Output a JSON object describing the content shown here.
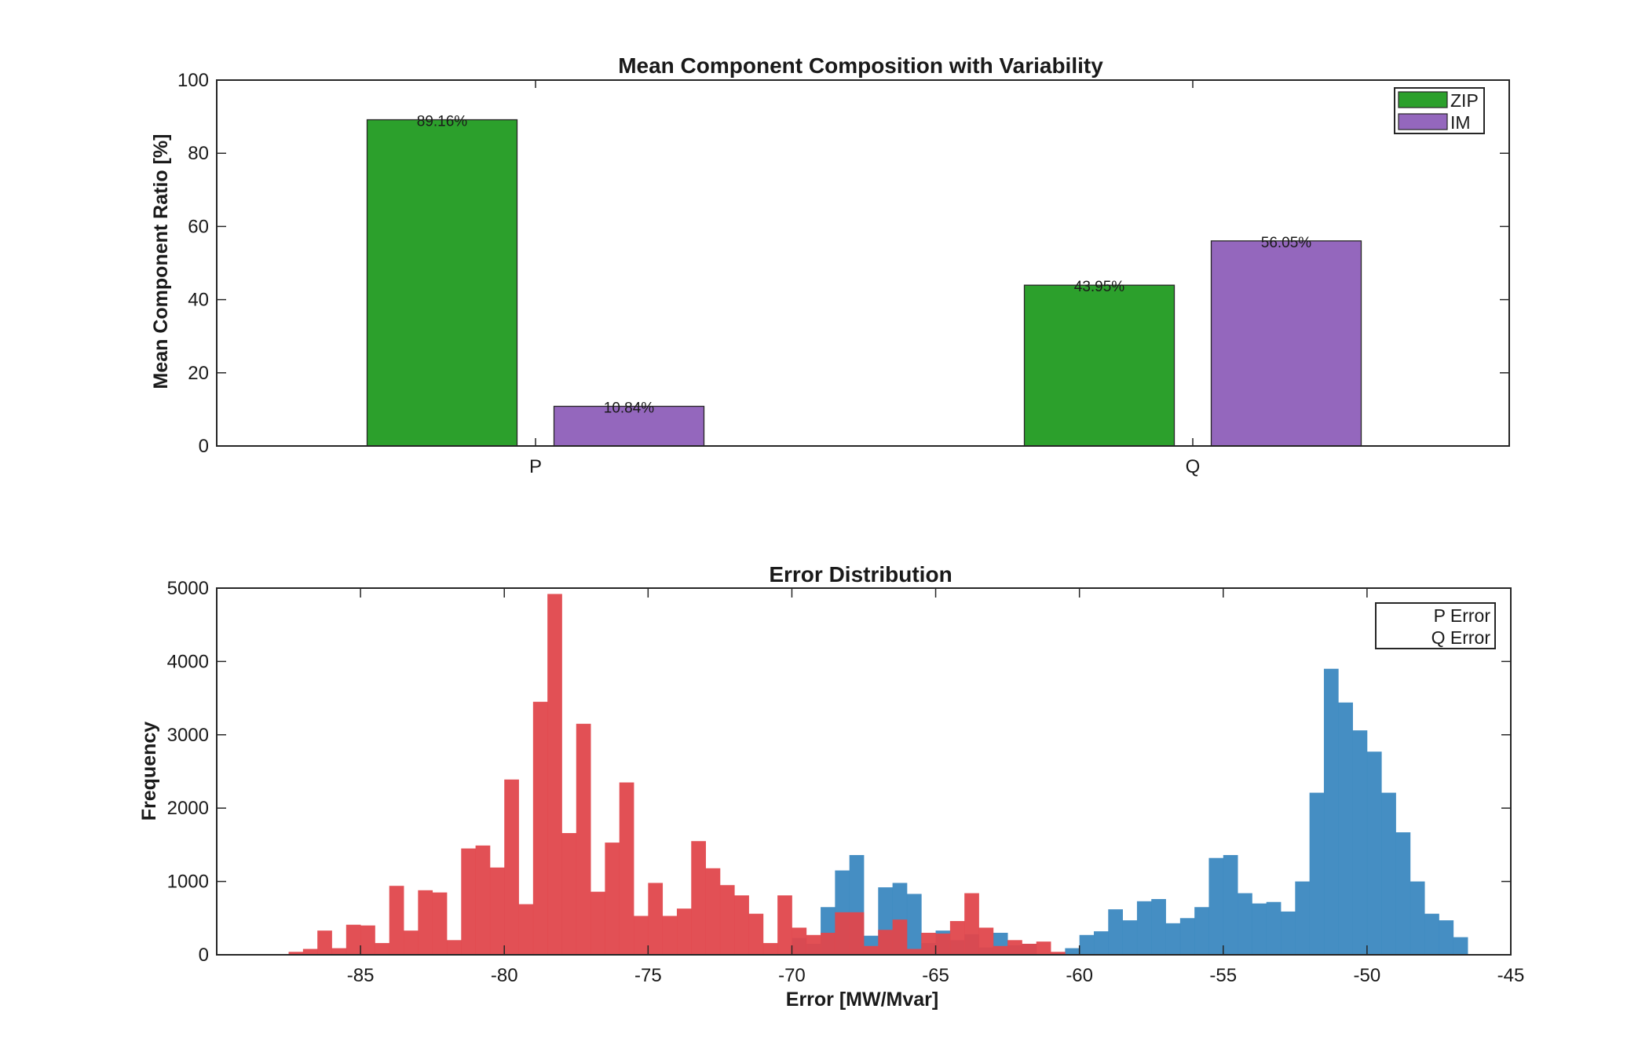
{
  "chart_data": [
    {
      "type": "bar",
      "title": "Mean Component Composition with Variability",
      "xlabel": "",
      "ylabel": "Mean Component Ratio [%]",
      "ylim": [
        0,
        100
      ],
      "yticks": [
        0,
        20,
        40,
        60,
        80,
        100
      ],
      "categories": [
        "P",
        "Q"
      ],
      "series": [
        {
          "name": "ZIP",
          "color": "#2ca02c",
          "values": [
            89.16,
            43.95
          ],
          "labels": [
            "89.16%",
            "43.95%"
          ]
        },
        {
          "name": "IM",
          "color": "#9467bd",
          "values": [
            10.84,
            56.05
          ],
          "labels": [
            "10.84%",
            "56.05%"
          ]
        }
      ],
      "legend": "top-right"
    },
    {
      "type": "histogram",
      "title": "Error Distribution",
      "xlabel": "Error [MW/Mvar]",
      "ylabel": "Frequency",
      "xlim": [
        -90,
        -45
      ],
      "ylim": [
        0,
        5000
      ],
      "xticks": [
        -85,
        -80,
        -75,
        -70,
        -65,
        -60,
        -55,
        -50,
        -45
      ],
      "yticks": [
        0,
        1000,
        2000,
        3000,
        4000,
        5000
      ],
      "bin_width": 0.5,
      "series": [
        {
          "name": "P Error",
          "color": "#3b88c0",
          "bin_start": -70.5,
          "counts": [
            0,
            230,
            150,
            650,
            1150,
            1360,
            260,
            920,
            980,
            830,
            160,
            330,
            200,
            280,
            100,
            300,
            130,
            150,
            0,
            20,
            90,
            270,
            320,
            620,
            470,
            730,
            760,
            430,
            500,
            650,
            1320,
            1360,
            840,
            700,
            720,
            590,
            1000,
            2210,
            3900,
            3440,
            3060,
            2770,
            2210,
            1670,
            1000,
            560,
            470,
            240
          ]
        },
        {
          "name": "Q Error",
          "color": "#e0474c",
          "bin_start": -87.5,
          "counts": [
            40,
            80,
            330,
            90,
            410,
            400,
            160,
            940,
            330,
            880,
            850,
            200,
            1450,
            1490,
            1190,
            2390,
            690,
            3450,
            4920,
            1660,
            3150,
            860,
            1530,
            2350,
            530,
            980,
            530,
            630,
            1550,
            1180,
            950,
            810,
            560,
            160,
            810,
            370,
            270,
            300,
            580,
            580,
            120,
            340,
            480,
            80,
            300,
            290,
            460,
            840,
            370,
            120,
            200,
            150,
            180,
            40
          ]
        }
      ],
      "legend": "top-right"
    }
  ]
}
